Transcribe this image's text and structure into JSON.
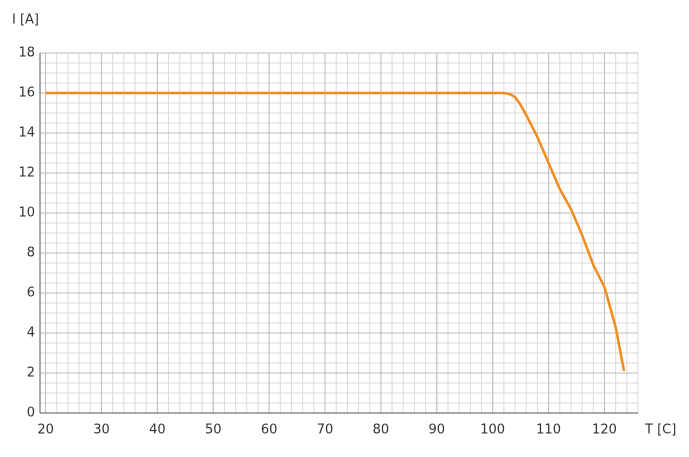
{
  "chart_data": {
    "type": "line",
    "y_label": "I [A]",
    "x_label": "T [C]",
    "x": [
      20,
      102,
      103,
      104,
      105,
      106,
      108,
      110,
      112,
      114,
      116,
      118,
      120,
      122,
      123.5
    ],
    "series": [
      {
        "name": "I",
        "color": "#f28c1c",
        "values": [
          16,
          16,
          15.95,
          15.8,
          15.4,
          14.9,
          13.8,
          12.5,
          11.2,
          10.2,
          8.9,
          7.4,
          6.3,
          4.3,
          2.1
        ]
      }
    ],
    "xlim": [
      19,
      126
    ],
    "ylim": [
      0,
      18
    ],
    "xticks": [
      20,
      30,
      40,
      50,
      60,
      70,
      80,
      90,
      100,
      110,
      120
    ],
    "yticks": [
      0,
      2,
      4,
      6,
      8,
      10,
      12,
      14,
      16,
      18
    ],
    "grid": true
  }
}
